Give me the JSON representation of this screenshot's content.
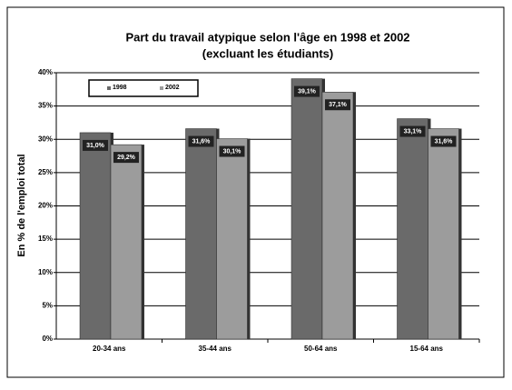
{
  "chart_data": {
    "type": "bar",
    "title": "Part du travail atypique selon l'âge en 1998 et 2002",
    "subtitle": "(excluant les étudiants)",
    "y_label": "En % de l'emploi total",
    "categories": [
      "20-34 ans",
      "35-44 ans",
      "50-64 ans",
      "15-64 ans"
    ],
    "series": [
      {
        "name": "1998",
        "color": "#6a6a6a",
        "values": [
          31.0,
          31.6,
          39.1,
          33.1
        ],
        "value_labels": [
          "31,0%",
          "31,6%",
          "39,1%",
          "33,1%"
        ]
      },
      {
        "name": "2002",
        "color": "#9c9c9c",
        "values": [
          29.2,
          30.1,
          37.1,
          31.6
        ],
        "value_labels": [
          "29,2%",
          "30,1%",
          "37,1%",
          "31,6%"
        ]
      }
    ],
    "ylim": [
      0,
      40
    ],
    "yticks": [
      {
        "value": 0,
        "label": "0%"
      },
      {
        "value": 5,
        "label": "5%"
      },
      {
        "value": 10,
        "label": "10%"
      },
      {
        "value": 15,
        "label": "15%"
      },
      {
        "value": 20,
        "label": "20%"
      },
      {
        "value": 25,
        "label": "25%"
      },
      {
        "value": 30,
        "label": "30%"
      },
      {
        "value": 35,
        "label": "35%"
      },
      {
        "value": 40,
        "label": "40%"
      }
    ],
    "grid": true,
    "legend": "top-left"
  }
}
